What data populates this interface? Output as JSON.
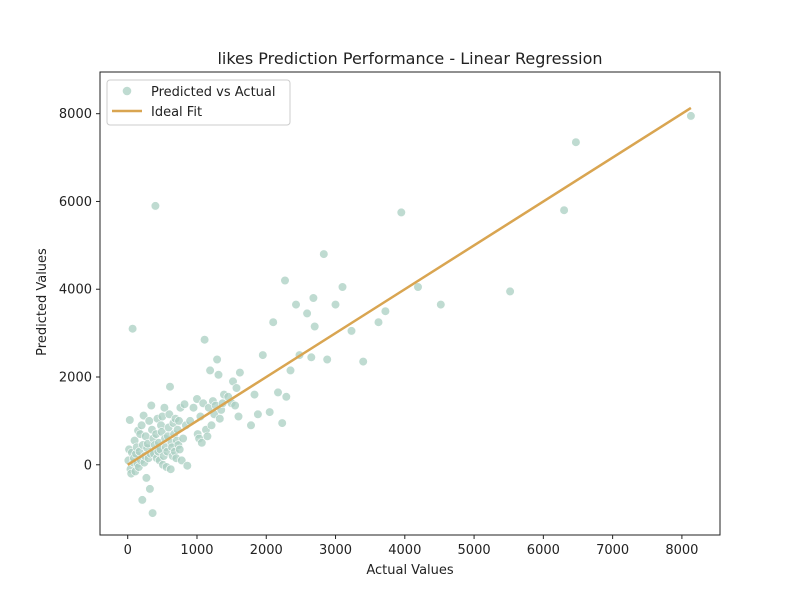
{
  "chart_data": {
    "type": "scatter",
    "title": "likes Prediction Performance - Linear Regression",
    "xlabel": "Actual Values",
    "ylabel": "Predicted Values",
    "xlim": [
      -400,
      8550
    ],
    "ylim": [
      -1600,
      8950
    ],
    "xticks": [
      0,
      1000,
      2000,
      3000,
      4000,
      5000,
      6000,
      7000,
      8000
    ],
    "yticks": [
      0,
      2000,
      4000,
      6000,
      8000
    ],
    "grid": false,
    "legend_position": "top-left",
    "colors": {
      "scatter": "#a9cfc2",
      "ideal": "#d9a551",
      "axis": "#222222"
    },
    "series": [
      {
        "name": "Predicted vs Actual",
        "kind": "scatter",
        "points": [
          [
            10,
            100
          ],
          [
            20,
            350
          ],
          [
            30,
            1020
          ],
          [
            40,
            -100
          ],
          [
            50,
            -200
          ],
          [
            60,
            280
          ],
          [
            70,
            3100
          ],
          [
            80,
            50
          ],
          [
            90,
            150
          ],
          [
            100,
            550
          ],
          [
            110,
            -150
          ],
          [
            120,
            250
          ],
          [
            130,
            400
          ],
          [
            140,
            20
          ],
          [
            150,
            780
          ],
          [
            160,
            -50
          ],
          [
            170,
            300
          ],
          [
            180,
            700
          ],
          [
            190,
            100
          ],
          [
            200,
            900
          ],
          [
            210,
            -800
          ],
          [
            220,
            450
          ],
          [
            230,
            1120
          ],
          [
            240,
            50
          ],
          [
            250,
            200
          ],
          [
            260,
            650
          ],
          [
            270,
            -300
          ],
          [
            280,
            380
          ],
          [
            290,
            480
          ],
          [
            300,
            150
          ],
          [
            310,
            1000
          ],
          [
            320,
            -550
          ],
          [
            330,
            250
          ],
          [
            340,
            1350
          ],
          [
            350,
            800
          ],
          [
            360,
            -1100
          ],
          [
            370,
            600
          ],
          [
            380,
            250
          ],
          [
            390,
            450
          ],
          [
            400,
            5900
          ],
          [
            410,
            700
          ],
          [
            420,
            150
          ],
          [
            430,
            1050
          ],
          [
            440,
            300
          ],
          [
            450,
            500
          ],
          [
            460,
            100
          ],
          [
            470,
            350
          ],
          [
            480,
            900
          ],
          [
            490,
            750
          ],
          [
            500,
            1100
          ],
          [
            510,
            0
          ],
          [
            520,
            200
          ],
          [
            530,
            1300
          ],
          [
            540,
            600
          ],
          [
            550,
            400
          ],
          [
            560,
            -50
          ],
          [
            570,
            300
          ],
          [
            580,
            650
          ],
          [
            590,
            850
          ],
          [
            600,
            1150
          ],
          [
            610,
            1780
          ],
          [
            620,
            -100
          ],
          [
            630,
            500
          ],
          [
            640,
            400
          ],
          [
            650,
            200
          ],
          [
            660,
            950
          ],
          [
            670,
            700
          ],
          [
            680,
            300
          ],
          [
            690,
            1050
          ],
          [
            700,
            150
          ],
          [
            710,
            550
          ],
          [
            720,
            800
          ],
          [
            730,
            450
          ],
          [
            740,
            1000
          ],
          [
            750,
            350
          ],
          [
            760,
            1300
          ],
          [
            780,
            100
          ],
          [
            800,
            600
          ],
          [
            820,
            1380
          ],
          [
            840,
            900
          ],
          [
            860,
            -20
          ],
          [
            900,
            1000
          ],
          [
            950,
            1300
          ],
          [
            1000,
            1500
          ],
          [
            1010,
            700
          ],
          [
            1030,
            600
          ],
          [
            1050,
            1100
          ],
          [
            1070,
            500
          ],
          [
            1090,
            1400
          ],
          [
            1110,
            2850
          ],
          [
            1130,
            800
          ],
          [
            1150,
            650
          ],
          [
            1170,
            1300
          ],
          [
            1190,
            2150
          ],
          [
            1210,
            900
          ],
          [
            1230,
            1450
          ],
          [
            1250,
            1150
          ],
          [
            1270,
            1350
          ],
          [
            1290,
            2400
          ],
          [
            1310,
            2050
          ],
          [
            1330,
            1050
          ],
          [
            1350,
            1250
          ],
          [
            1370,
            1400
          ],
          [
            1390,
            1600
          ],
          [
            1450,
            1550
          ],
          [
            1500,
            1400
          ],
          [
            1520,
            1900
          ],
          [
            1550,
            1350
          ],
          [
            1570,
            1750
          ],
          [
            1600,
            1100
          ],
          [
            1620,
            2100
          ],
          [
            1780,
            900
          ],
          [
            1830,
            1600
          ],
          [
            1880,
            1150
          ],
          [
            1950,
            2500
          ],
          [
            2050,
            1200
          ],
          [
            2100,
            3250
          ],
          [
            2170,
            1650
          ],
          [
            2230,
            950
          ],
          [
            2270,
            4200
          ],
          [
            2290,
            1550
          ],
          [
            2350,
            2150
          ],
          [
            2430,
            3650
          ],
          [
            2480,
            2500
          ],
          [
            2590,
            3450
          ],
          [
            2650,
            2450
          ],
          [
            2680,
            3800
          ],
          [
            2700,
            3150
          ],
          [
            2830,
            4800
          ],
          [
            2880,
            2400
          ],
          [
            3000,
            3650
          ],
          [
            3100,
            4050
          ],
          [
            3230,
            3050
          ],
          [
            3400,
            2350
          ],
          [
            3620,
            3250
          ],
          [
            3720,
            3500
          ],
          [
            3950,
            5750
          ],
          [
            4190,
            4050
          ],
          [
            4520,
            3650
          ],
          [
            5520,
            3950
          ],
          [
            6300,
            5800
          ],
          [
            6470,
            7350
          ],
          [
            8130,
            7950
          ]
        ]
      },
      {
        "name": "Ideal Fit",
        "kind": "line",
        "points": [
          [
            0,
            0
          ],
          [
            8130,
            8130
          ]
        ]
      }
    ]
  }
}
